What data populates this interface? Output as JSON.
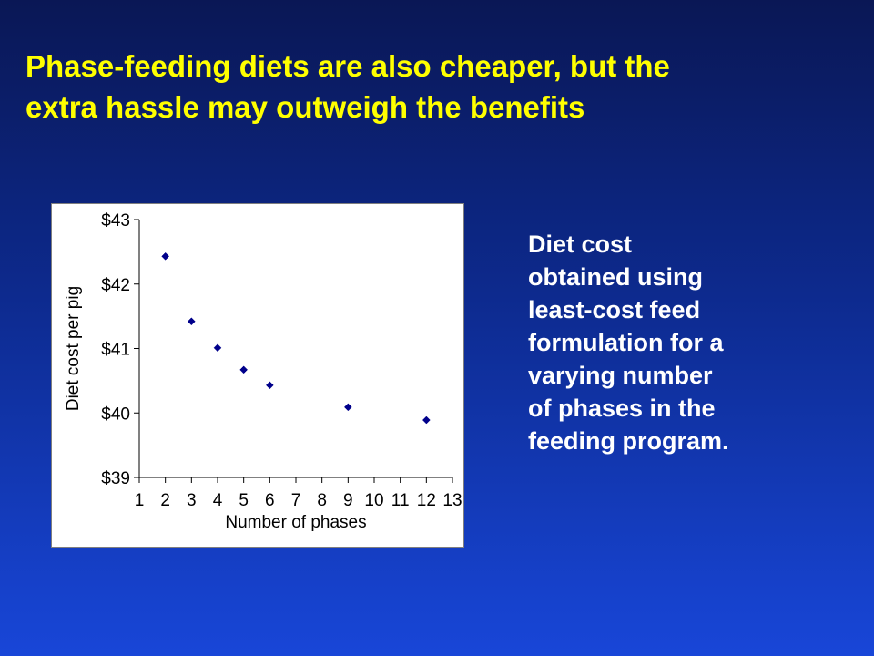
{
  "slide": {
    "title_lines": [
      "Phase-feeding diets are also cheaper, but the",
      "extra hassle may outweigh the benefits"
    ],
    "caption_lines": [
      "Diet cost",
      "obtained using",
      "least-cost feed",
      "formulation for a",
      "varying number",
      "of phases in the",
      "feeding program."
    ],
    "colors": {
      "background_top": "#0a1755",
      "background_bottom": "#1846d8",
      "title": "#ffff00",
      "caption": "#ffffff",
      "marker": "#00008b"
    }
  },
  "chart_data": {
    "type": "scatter",
    "xlabel": "Number of phases",
    "ylabel": "Diet cost per pig",
    "xlim": [
      1,
      13
    ],
    "ylim": [
      39,
      43
    ],
    "x_ticks": [
      "1",
      "2",
      "3",
      "4",
      "5",
      "6",
      "7",
      "8",
      "9",
      "10",
      "11",
      "12",
      "13"
    ],
    "y_ticks": [
      "$39",
      "$40",
      "$41",
      "$42",
      "$43"
    ],
    "grid": false,
    "legend": "none",
    "marker": "diamond",
    "points": [
      {
        "x": 2,
        "y": 42.43
      },
      {
        "x": 3,
        "y": 41.42
      },
      {
        "x": 4,
        "y": 41.01
      },
      {
        "x": 5,
        "y": 40.67
      },
      {
        "x": 6,
        "y": 40.43
      },
      {
        "x": 9,
        "y": 40.09
      },
      {
        "x": 12,
        "y": 39.89
      }
    ]
  }
}
